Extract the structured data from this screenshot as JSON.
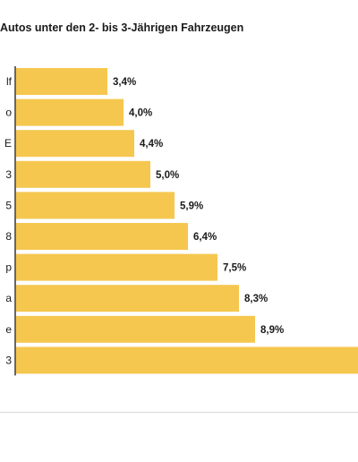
{
  "title": "Autos unter den 2- bis 3-Jährigen Fahrzeugen",
  "colors": {
    "bar": "#f5c74f",
    "axis": "#333333",
    "text": "#1a1a1a",
    "rule": "#d8d8d8"
  },
  "chart_data": {
    "type": "bar",
    "orientation": "horizontal",
    "title": "Autos unter den 2- bis 3-Jährigen Fahrzeugen",
    "categories": [
      "lf",
      "o",
      "E",
      "3",
      "5",
      "8",
      "p",
      "a",
      "e",
      "3"
    ],
    "values": [
      3.4,
      4.0,
      4.4,
      5.0,
      5.9,
      6.4,
      7.5,
      8.3,
      8.9,
      13.0
    ],
    "value_labels": [
      "3,4%",
      "4,0%",
      "4,4%",
      "5,0%",
      "5,9%",
      "6,4%",
      "7,5%",
      "8,3%",
      "8,9%",
      ""
    ],
    "xlim": [
      0,
      13.0
    ],
    "grid": false,
    "legend": "none"
  }
}
